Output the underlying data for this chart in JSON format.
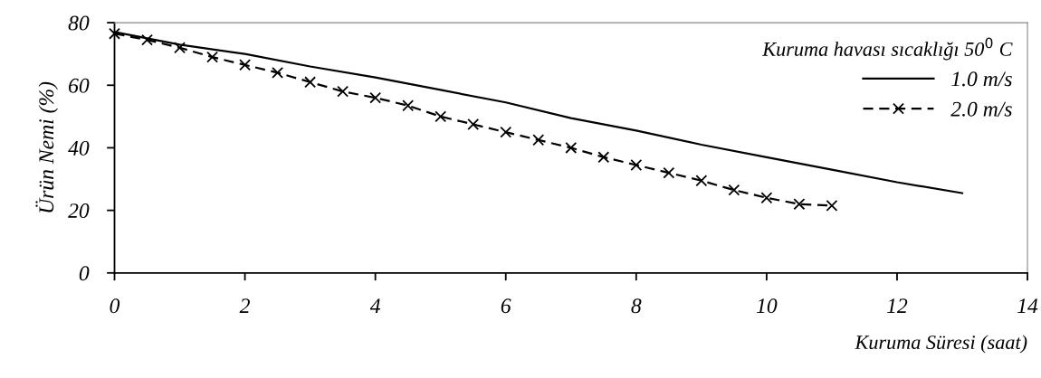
{
  "chart_data": {
    "type": "line",
    "xlabel": "Kuruma Süresi (saat)",
    "ylabel": "Ürün Nemi (%)",
    "legend_title": "Kuruma havası sıcaklığı 50$^{0}$ C",
    "legend": "top right",
    "grid": false,
    "xlim": [
      0,
      14
    ],
    "xticks": [
      0,
      2,
      4,
      6,
      8,
      10,
      12,
      14
    ],
    "ylim": [
      0,
      80
    ],
    "yticks": [
      0,
      20,
      40,
      60,
      80
    ],
    "series": [
      {
        "name": "1.0 m/s",
        "color": "#000000",
        "marker": "none",
        "line_style": "solid",
        "x": [
          0,
          1,
          2,
          3,
          4,
          5,
          6,
          7,
          8,
          9,
          10,
          11,
          12,
          13
        ],
        "values": [
          77,
          73,
          70,
          66,
          62.5,
          58.5,
          54.5,
          49.5,
          45.5,
          41,
          37,
          33,
          29,
          25.5
        ]
      },
      {
        "name": "2.0 m/s",
        "color": "#000000",
        "marker": "cross",
        "line_style": "dashed",
        "x": [
          0,
          0.5,
          1,
          1.5,
          2,
          2.5,
          3,
          3.5,
          4,
          4.5,
          5,
          5.5,
          6,
          6.5,
          7,
          7.5,
          8,
          8.5,
          9,
          9.5,
          10,
          10.5,
          11
        ],
        "values": [
          76.5,
          74.5,
          72,
          69,
          66.5,
          64,
          61,
          58,
          56,
          53.5,
          50,
          47.5,
          45,
          42.5,
          40,
          37,
          34.5,
          32,
          29.5,
          26.5,
          24,
          22,
          21.5
        ]
      }
    ]
  }
}
